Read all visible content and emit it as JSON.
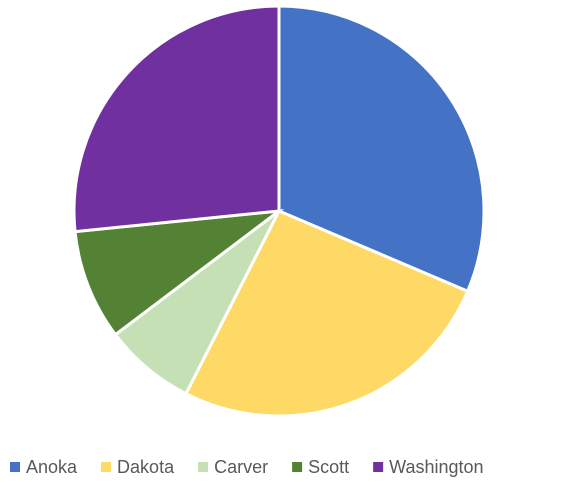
{
  "chart_data": {
    "type": "pie",
    "categories": [
      "Anoka",
      "Dakota",
      "Carver",
      "Scott",
      "Washington"
    ],
    "values": [
      31.4,
      26.1,
      7.2,
      8.7,
      26.6
    ],
    "colors": [
      "#4472c4",
      "#ffd966",
      "#c5e0b4",
      "#548235",
      "#7030a0"
    ],
    "legend": "bottom"
  }
}
